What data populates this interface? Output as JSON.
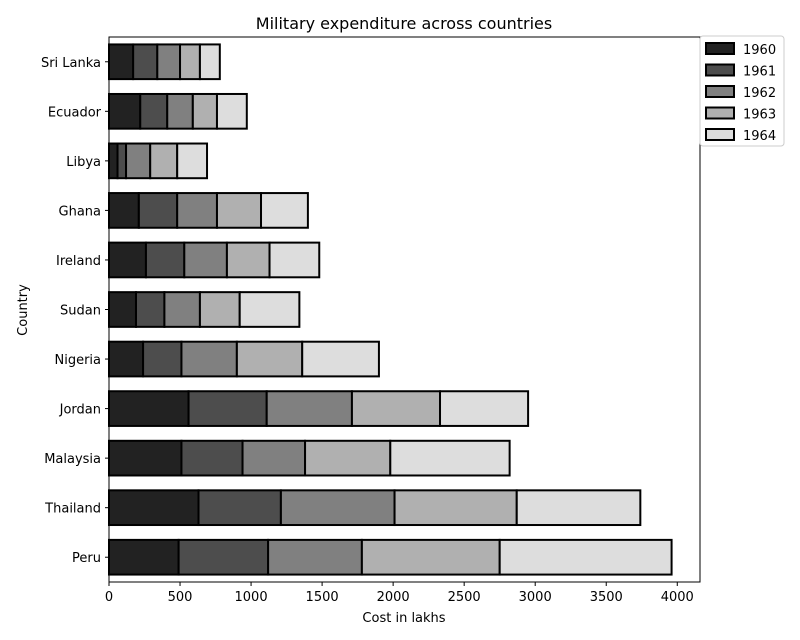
{
  "chart_data": {
    "type": "bar",
    "orientation": "horizontal",
    "stacked": true,
    "title": "Military expenditure across countries",
    "xlabel": "Cost in lakhs",
    "ylabel": "Country",
    "xlim": [
      0,
      4160
    ],
    "xticks": [
      0,
      500,
      1000,
      1500,
      2000,
      2500,
      3000,
      3500,
      4000
    ],
    "xtick_labels": [
      "0",
      "500",
      "1000",
      "1500",
      "2000",
      "2500",
      "3000",
      "3500",
      "4000"
    ],
    "grid": false,
    "legend_position": "outside-top-right",
    "categories": [
      "Peru",
      "Thailand",
      "Malaysia",
      "Jordan",
      "Nigeria",
      "Sudan",
      "Ireland",
      "Ghana",
      "Libya",
      "Ecuador",
      "Sri Lanka"
    ],
    "series": [
      {
        "name": "1960",
        "color": "#222222",
        "values": [
          490,
          630,
          510,
          560,
          240,
          190,
          260,
          210,
          60,
          220,
          170
        ]
      },
      {
        "name": "1961",
        "color": "#4d4d4d",
        "values": [
          630,
          580,
          430,
          550,
          270,
          200,
          270,
          270,
          60,
          190,
          170
        ]
      },
      {
        "name": "1962",
        "color": "#808080",
        "values": [
          660,
          800,
          440,
          600,
          390,
          250,
          300,
          280,
          170,
          180,
          160
        ]
      },
      {
        "name": "1963",
        "color": "#b0b0b0",
        "values": [
          970,
          860,
          600,
          620,
          460,
          280,
          300,
          310,
          190,
          170,
          140
        ]
      },
      {
        "name": "1964",
        "color": "#dddddd",
        "values": [
          1210,
          870,
          840,
          620,
          540,
          420,
          350,
          330,
          210,
          210,
          140
        ]
      }
    ]
  }
}
